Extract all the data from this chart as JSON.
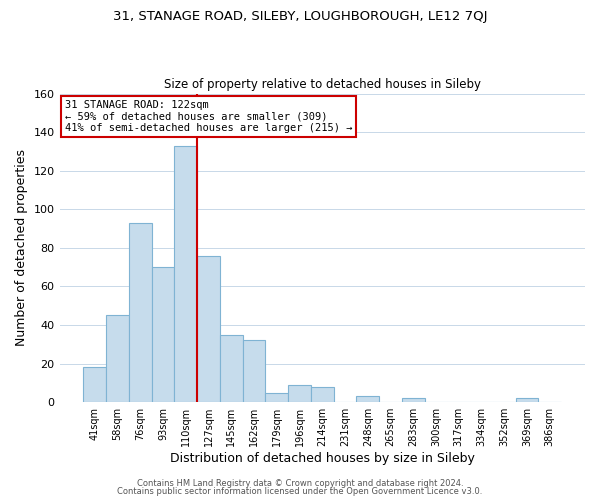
{
  "title_line1": "31, STANAGE ROAD, SILEBY, LOUGHBOROUGH, LE12 7QJ",
  "title_line2": "Size of property relative to detached houses in Sileby",
  "xlabel": "Distribution of detached houses by size in Sileby",
  "ylabel": "Number of detached properties",
  "bar_labels": [
    "41sqm",
    "58sqm",
    "76sqm",
    "93sqm",
    "110sqm",
    "127sqm",
    "145sqm",
    "162sqm",
    "179sqm",
    "196sqm",
    "214sqm",
    "231sqm",
    "248sqm",
    "265sqm",
    "283sqm",
    "300sqm",
    "317sqm",
    "334sqm",
    "352sqm",
    "369sqm",
    "386sqm"
  ],
  "bar_values": [
    18,
    45,
    93,
    70,
    133,
    76,
    35,
    32,
    5,
    9,
    8,
    0,
    3,
    0,
    2,
    0,
    0,
    0,
    0,
    2,
    0
  ],
  "bar_color": "#c6dcec",
  "bar_edge_color": "#7fb3d3",
  "property_line_color": "#cc0000",
  "annotation_line1": "31 STANAGE ROAD: 122sqm",
  "annotation_line2": "← 59% of detached houses are smaller (309)",
  "annotation_line3": "41% of semi-detached houses are larger (215) →",
  "annotation_box_color": "#ffffff",
  "annotation_box_edge": "#cc0000",
  "ylim": [
    0,
    160
  ],
  "yticks": [
    0,
    20,
    40,
    60,
    80,
    100,
    120,
    140,
    160
  ],
  "footer_line1": "Contains HM Land Registry data © Crown copyright and database right 2024.",
  "footer_line2": "Contains public sector information licensed under the Open Government Licence v3.0.",
  "background_color": "#ffffff",
  "grid_color": "#c8d8e8"
}
